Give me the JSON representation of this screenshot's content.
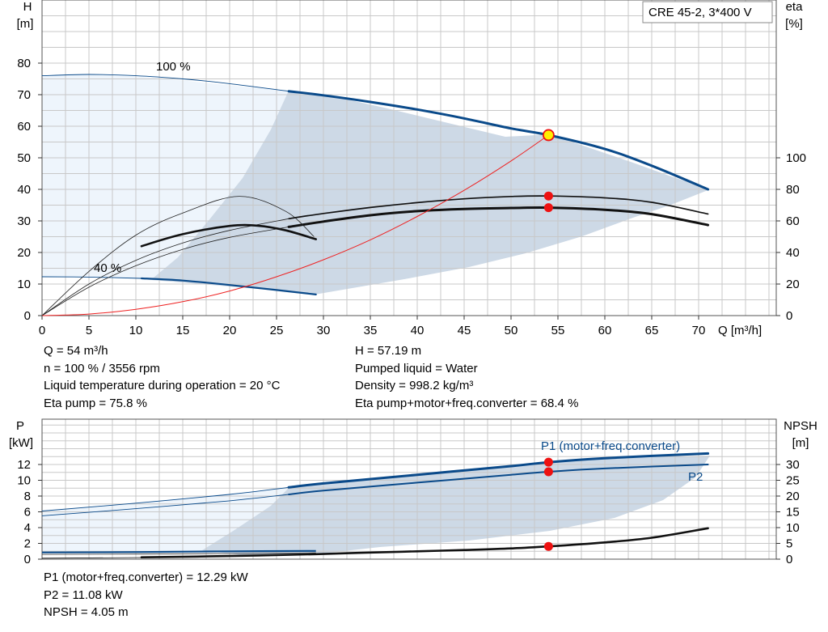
{
  "model_box": "CRE 45-2, 3*400 V",
  "chart_data": [
    {
      "type": "line",
      "name": "head-efficiency",
      "xlabel": "Q [m³/h]",
      "ylabel_left": [
        "H",
        "[m]"
      ],
      "ylabel_right": [
        "eta",
        "[%]"
      ],
      "xlim": [
        0,
        72
      ],
      "ylim": [
        0,
        90
      ],
      "x_ticks": [
        0,
        5,
        10,
        15,
        20,
        25,
        30,
        35,
        40,
        45,
        50,
        55,
        60,
        65,
        70
      ],
      "y_ticks": [
        0,
        10,
        20,
        30,
        40,
        50,
        60,
        70,
        80
      ],
      "eta_ticks": [
        0,
        20,
        40,
        60,
        80,
        100
      ],
      "eta_scale": "eta = 2 × H-axis units (0–100 % spans 0–50 on H axis)",
      "grid": true,
      "labels": [
        "100 %",
        "40 %"
      ],
      "operating_point": {
        "Q": 54,
        "H": 57.19
      },
      "series": [
        {
          "name": "H 100 %",
          "x": [
            0,
            5,
            10,
            15,
            20,
            26.3,
            30,
            35,
            40,
            45,
            50,
            54,
            60,
            65,
            71
          ],
          "y": [
            76,
            76.4,
            76,
            75,
            73.5,
            71.1,
            69.8,
            67.7,
            65.3,
            62.5,
            59.3,
            57.2,
            52.8,
            47.5,
            40
          ]
        },
        {
          "name": "H 40 %",
          "x": [
            0,
            5,
            10.6,
            15,
            20,
            25,
            29.2
          ],
          "y": [
            12.3,
            12.2,
            11.8,
            11.1,
            9.7,
            8.1,
            6.7
          ]
        },
        {
          "name": "Eta pump",
          "x": [
            26.3,
            30,
            35,
            40,
            45,
            50,
            54,
            60,
            65,
            71
          ],
          "y": [
            61.4,
            64.7,
            68.5,
            71.6,
            74,
            75.5,
            75.8,
            74.6,
            71.8,
            64.4
          ]
        },
        {
          "name": "Eta pump+motor+freq.converter",
          "x": [
            22.1,
            26.3,
            30,
            35,
            40,
            45,
            50,
            54,
            60,
            65,
            71
          ],
          "y": [
            53.4,
            56.2,
            59.6,
            63.6,
            66.2,
            67.6,
            68.2,
            68.4,
            67.1,
            64.3,
            57.4
          ]
        },
        {
          "name": "System curve",
          "x": [
            0,
            5,
            10,
            15,
            20,
            25,
            30,
            35,
            40,
            45,
            50,
            54
          ],
          "y": [
            0,
            0.5,
            2,
            4.4,
            7.8,
            12.3,
            17.7,
            24,
            31.4,
            39.7,
            49,
            57.2
          ]
        }
      ]
    },
    {
      "type": "line",
      "name": "power-npsh",
      "ylabel_left": [
        "P",
        "[kW]"
      ],
      "ylabel_right": [
        "NPSH",
        "[m]"
      ],
      "xlim": [
        0,
        72
      ],
      "ylim": [
        0,
        14
      ],
      "y_ticks": [
        0,
        2,
        4,
        6,
        8,
        10,
        12
      ],
      "npsh_ticks": [
        0,
        5,
        10,
        15,
        20,
        25,
        30
      ],
      "grid": true,
      "labels": [
        "P1 (motor+freq.converter)",
        "P2"
      ],
      "operating_point": {
        "Q": 54,
        "P1": 12.29,
        "P2": 11.08,
        "NPSH": 4.05
      },
      "series": [
        {
          "name": "P1 (motor+freq.converter)",
          "x": [
            0,
            10,
            20,
            26.3,
            30,
            40,
            50,
            54,
            60,
            71
          ],
          "y": [
            6.1,
            7.1,
            8.2,
            9.1,
            9.6,
            10.7,
            11.8,
            12.29,
            12.8,
            13.4
          ]
        },
        {
          "name": "P2",
          "x": [
            0,
            10,
            20,
            26.3,
            30,
            40,
            50,
            54,
            60,
            71
          ],
          "y": [
            5.5,
            6.4,
            7.4,
            8.2,
            8.7,
            9.7,
            10.7,
            11.08,
            11.5,
            12.0
          ]
        },
        {
          "name": "NPSH",
          "x": [
            10.6,
            20,
            29.2,
            35,
            40,
            45,
            50,
            54,
            60,
            65,
            71
          ],
          "y": [
            0.6,
            1.0,
            1.6,
            2.1,
            2.5,
            2.9,
            3.4,
            4.05,
            5.3,
            6.8,
            9.8
          ]
        }
      ]
    }
  ],
  "info_top_left": [
    "Q = 54 m³/h",
    "n = 100 % / 3556 rpm",
    "Liquid temperature during operation = 20 °C",
    "Eta pump = 75.8 %"
  ],
  "info_top_right": [
    "H = 57.19 m",
    "Pumped liquid = Water",
    "Density = 998.2 kg/m³",
    "Eta pump+motor+freq.converter = 68.4 %"
  ],
  "info_bottom": [
    "P1 (motor+freq.converter) = 12.29 kW",
    "P2 = 11.08 kW",
    "NPSH = 4.05 m"
  ],
  "colors": {
    "curve_blue": "#0a4a8a",
    "area_light": "#eef5fc",
    "area_dark": "#cdd9e6",
    "marker": "#ee1111",
    "system_curve": "#ee2222",
    "grid": "#c8c8c8"
  }
}
